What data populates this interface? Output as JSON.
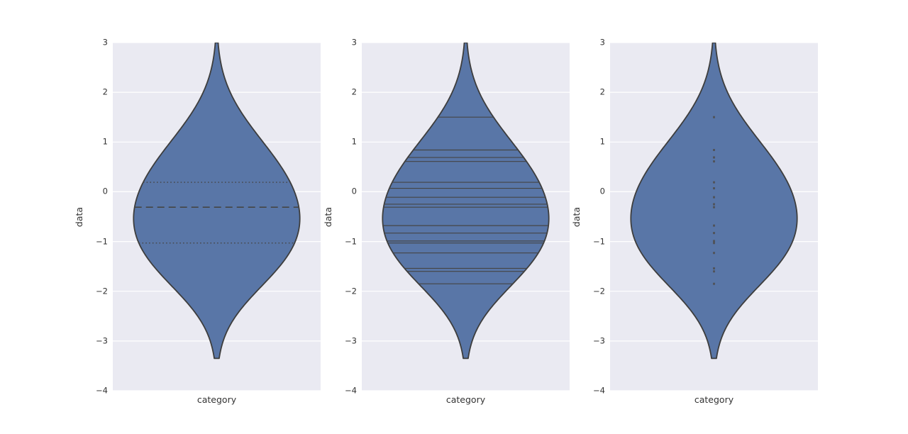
{
  "style": {
    "figure_bg": "#ffffff",
    "axes_bg": "#eaeaf2",
    "grid": "#ffffff",
    "violin_fill": "#5976a7",
    "violin_edge": "#3d3d3d",
    "inner_line": "#454545",
    "point": "#4f4f4f",
    "text": "#333333"
  },
  "chart_data": [
    {
      "type": "violin",
      "inner": "quartile",
      "category": "category",
      "ylabel": "data",
      "ylim": [
        -4,
        3
      ],
      "yticks": [
        3,
        2,
        1,
        0,
        -1,
        -2,
        -3,
        -4
      ],
      "yticklabels": [
        "3",
        "2",
        "1",
        "0",
        "−1",
        "−2",
        "−3",
        "−4"
      ],
      "grid": true,
      "bandwidth": 0.75,
      "observations": [
        1.5,
        0.84,
        0.69,
        0.61,
        0.19,
        0.07,
        -0.11,
        -0.25,
        -0.31,
        -0.68,
        -0.83,
        -0.99,
        -1.03,
        -1.23,
        -1.54,
        -1.6,
        -1.85
      ],
      "quartiles": [
        -1.03,
        -0.31,
        0.19
      ]
    },
    {
      "type": "violin",
      "inner": "stick",
      "category": "category",
      "ylabel": "data",
      "ylim": [
        -4,
        3
      ],
      "yticks": [
        3,
        2,
        1,
        0,
        -1,
        -2,
        -3,
        -4
      ],
      "yticklabels": [
        "3",
        "2",
        "1",
        "0",
        "−1",
        "−2",
        "−3",
        "−4"
      ],
      "grid": true,
      "bandwidth": 0.75,
      "observations": [
        1.5,
        0.84,
        0.69,
        0.61,
        0.19,
        0.07,
        -0.11,
        -0.25,
        -0.31,
        -0.68,
        -0.83,
        -0.99,
        -1.03,
        -1.23,
        -1.54,
        -1.6,
        -1.85
      ]
    },
    {
      "type": "violin",
      "inner": "point",
      "category": "category",
      "ylabel": "data",
      "ylim": [
        -4,
        3
      ],
      "yticks": [
        3,
        2,
        1,
        0,
        -1,
        -2,
        -3,
        -4
      ],
      "yticklabels": [
        "3",
        "2",
        "1",
        "0",
        "−1",
        "−2",
        "−3",
        "−4"
      ],
      "grid": true,
      "bandwidth": 0.75,
      "observations": [
        1.5,
        0.84,
        0.69,
        0.61,
        0.19,
        0.07,
        -0.11,
        -0.25,
        -0.31,
        -0.68,
        -0.83,
        -0.99,
        -1.03,
        -1.23,
        -1.54,
        -1.6,
        -1.85
      ]
    }
  ]
}
